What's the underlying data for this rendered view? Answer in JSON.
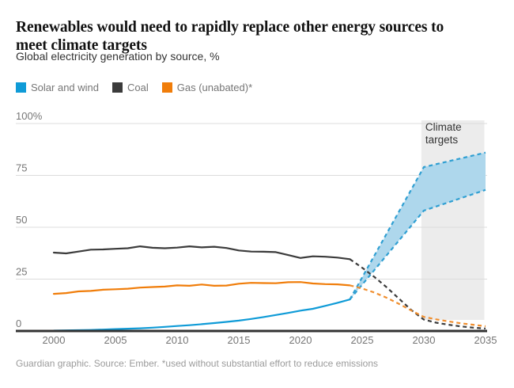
{
  "header": {
    "title_lines": [
      "Renewables would need to rapidly replace other energy sources to",
      "meet climate targets"
    ],
    "subtitle": "Global electricity generation by source, %"
  },
  "legend": [
    {
      "label": "Solar and wind",
      "color": "#0f9bd7"
    },
    {
      "label": "Coal",
      "color": "#3b3b3b"
    },
    {
      "label": "Gas (unabated)*",
      "color": "#f07d0a"
    }
  ],
  "footer": {
    "note": "Guardian graphic. Source: Ember. *used without substantial effort to reduce emissions"
  },
  "chart_data": {
    "type": "line",
    "title": "Global electricity generation by source, %",
    "xlabel": "",
    "ylabel": "%",
    "xlim": [
      1999.5,
      2035.3
    ],
    "ylim": [
      0,
      100
    ],
    "grid": "horizontal",
    "legend_position": "top",
    "x_ticks": [
      2000,
      2005,
      2010,
      2015,
      2020,
      2025,
      2030,
      2035
    ],
    "y_ticks": [
      {
        "value": 100,
        "label": "100%"
      },
      {
        "value": 75,
        "label": "75"
      },
      {
        "value": 50,
        "label": "50"
      },
      {
        "value": 25,
        "label": "25"
      },
      {
        "value": 0,
        "label": "0"
      }
    ],
    "highlight_region": {
      "label_lines": [
        "Climate",
        "targets"
      ],
      "x_start": 2029.8,
      "x_end": 2034.9,
      "color": "#ececec",
      "text_color": "#333333"
    },
    "series": [
      {
        "name": "Solar and wind",
        "color": "#0f9bd7",
        "style": "solid",
        "x": [
          2000,
          2001,
          2002,
          2003,
          2004,
          2005,
          2006,
          2007,
          2008,
          2009,
          2010,
          2011,
          2012,
          2013,
          2014,
          2015,
          2016,
          2017,
          2018,
          2019,
          2020,
          2021,
          2022,
          2023,
          2024
        ],
        "y": [
          0.2,
          0.3,
          0.4,
          0.5,
          0.7,
          0.9,
          1.1,
          1.3,
          1.6,
          2.0,
          2.4,
          2.8,
          3.3,
          3.8,
          4.4,
          5.0,
          5.8,
          6.7,
          7.7,
          8.7,
          9.8,
          10.7,
          12.1,
          13.6,
          15.2
        ]
      },
      {
        "name": "Coal",
        "color": "#3b3b3b",
        "style": "solid",
        "x": [
          2000,
          2001,
          2002,
          2003,
          2004,
          2005,
          2006,
          2007,
          2008,
          2009,
          2010,
          2011,
          2012,
          2013,
          2014,
          2015,
          2016,
          2017,
          2018,
          2019,
          2020,
          2021,
          2022,
          2023,
          2024
        ],
        "y": [
          37.8,
          37.4,
          38.3,
          39.2,
          39.3,
          39.6,
          39.9,
          40.8,
          40.1,
          39.9,
          40.2,
          40.8,
          40.3,
          40.6,
          40.0,
          38.8,
          38.3,
          38.2,
          38.0,
          36.6,
          35.2,
          36.0,
          35.8,
          35.4,
          34.6
        ]
      },
      {
        "name": "Gas (unabated)",
        "color": "#f07d0a",
        "style": "solid",
        "x": [
          2000,
          2001,
          2002,
          2003,
          2004,
          2005,
          2006,
          2007,
          2008,
          2009,
          2010,
          2011,
          2012,
          2013,
          2014,
          2015,
          2016,
          2017,
          2018,
          2019,
          2020,
          2021,
          2022,
          2023,
          2024
        ],
        "y": [
          17.9,
          18.3,
          19.1,
          19.3,
          19.9,
          20.1,
          20.4,
          20.9,
          21.2,
          21.4,
          22.0,
          21.8,
          22.4,
          21.8,
          21.9,
          22.8,
          23.2,
          23.1,
          23.0,
          23.5,
          23.6,
          22.9,
          22.6,
          22.5,
          22.0
        ]
      },
      {
        "name": "Coal climate-target projection",
        "color": "#3b3b3b",
        "style": "dashed",
        "x": [
          2024,
          2025,
          2026,
          2027,
          2028,
          2029,
          2030,
          2031,
          2032,
          2033,
          2034,
          2035
        ],
        "y": [
          34.6,
          30.5,
          26.0,
          21.0,
          15.5,
          10.0,
          5.5,
          4.0,
          3.0,
          2.2,
          1.6,
          1.2
        ]
      },
      {
        "name": "Gas climate-target projection",
        "color": "#f08e2e",
        "style": "dashed",
        "x": [
          2024,
          2025,
          2026,
          2027,
          2028,
          2029,
          2030,
          2031,
          2032,
          2033,
          2034,
          2035
        ],
        "y": [
          22.0,
          20.5,
          18.5,
          16.0,
          13.0,
          9.8,
          6.8,
          5.6,
          4.6,
          3.7,
          3.0,
          2.3
        ]
      }
    ],
    "band": {
      "name": "Solar and wind climate-target range",
      "fill": "#aed7ec",
      "edge_color": "#2f9fd2",
      "upper": {
        "x": [
          2024,
          2030,
          2035
        ],
        "y": [
          15.2,
          79,
          86
        ]
      },
      "lower": {
        "x": [
          2024,
          2030,
          2035
        ],
        "y": [
          15.2,
          58,
          68
        ]
      }
    }
  }
}
